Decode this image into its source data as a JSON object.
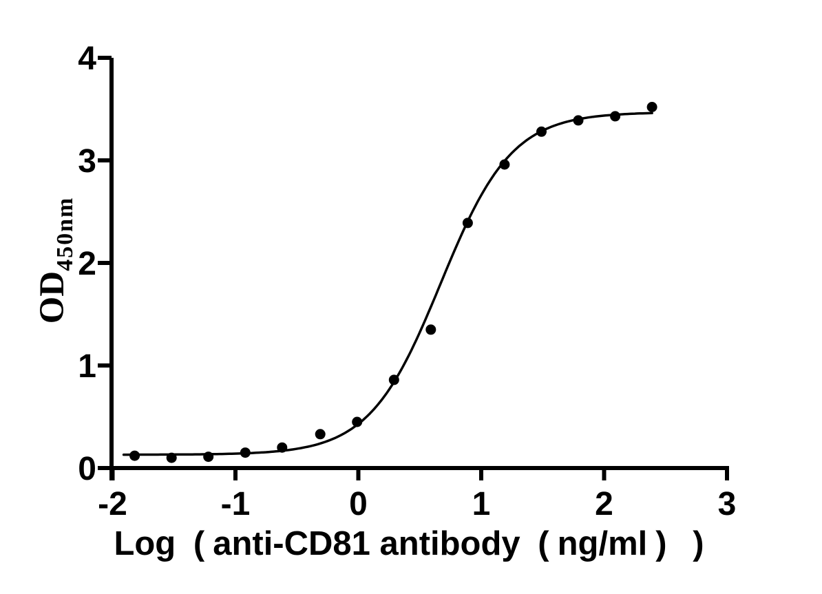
{
  "chart_data": {
    "type": "scatter",
    "title": "",
    "xlabel": "Log （anti-CD81 antibody （ng/ml） ）",
    "ylabel": "OD",
    "ylabel_subscript": "450nm",
    "xlim": [
      -2,
      3
    ],
    "ylim": [
      0,
      4
    ],
    "x_ticks": [
      -2,
      -1,
      0,
      1,
      2,
      3
    ],
    "y_ticks": [
      0,
      1,
      2,
      3,
      4
    ],
    "grid": false,
    "legend_position": "none",
    "background_color": "#ffffff",
    "foreground_color": "#000000",
    "series": [
      {
        "marker": "filled-circle",
        "marker_color": "#000000",
        "x": [
          -1.82,
          -1.52,
          -1.22,
          -0.92,
          -0.62,
          -0.31,
          -0.01,
          0.29,
          0.59,
          0.89,
          1.19,
          1.49,
          1.79,
          2.09,
          2.39
        ],
        "y": [
          0.12,
          0.1,
          0.11,
          0.15,
          0.2,
          0.33,
          0.45,
          0.86,
          1.35,
          2.39,
          2.96,
          3.28,
          3.39,
          3.43,
          3.52
        ]
      }
    ],
    "fit_curve": {
      "model": "4PL",
      "bottom": 0.13,
      "top": 3.47,
      "logEC50": 0.67,
      "hillslope": 1.5,
      "x_range": [
        -1.91,
        2.4
      ],
      "color": "#000000"
    }
  }
}
